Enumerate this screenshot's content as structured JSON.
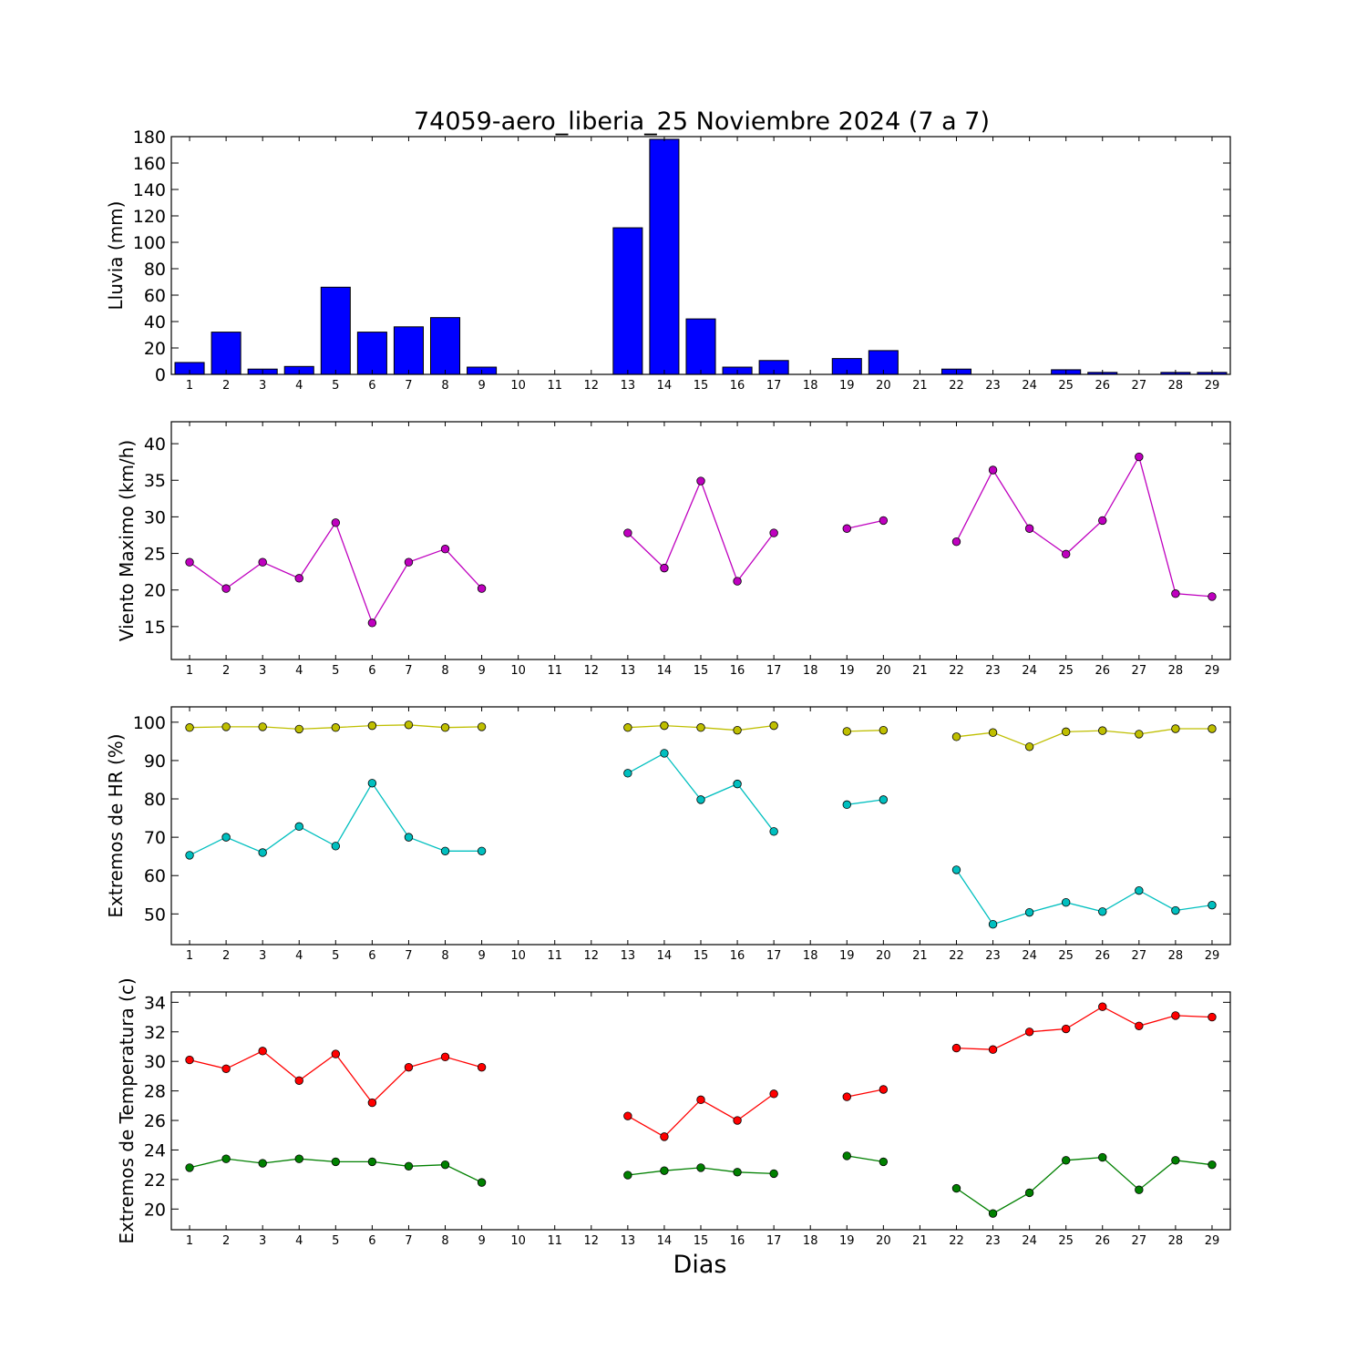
{
  "figure": {
    "title": "74059-aero_liberia_25 Noviembre 2024  (7 a 7)",
    "xlabel": "Dias"
  },
  "chart_data": [
    {
      "type": "bar",
      "ylabel": "Lluvia (mm)",
      "ylim": [
        0,
        180
      ],
      "yticks": [
        0,
        20,
        40,
        60,
        80,
        100,
        120,
        140,
        160,
        180
      ],
      "xlim": [
        0.5,
        29.5
      ],
      "categories": [
        "1",
        "2",
        "3",
        "4",
        "5",
        "6",
        "7",
        "8",
        "9",
        "10",
        "11",
        "12",
        "13",
        "14",
        "15",
        "16",
        "17",
        "18",
        "19",
        "20",
        "21",
        "22",
        "23",
        "24",
        "25",
        "26",
        "27",
        "28",
        "29"
      ],
      "color": "#0000ff",
      "values": [
        9,
        32,
        4,
        6,
        66,
        32,
        36,
        43,
        5.5,
        0,
        0,
        0,
        111,
        178,
        42,
        5.5,
        10.5,
        0,
        12,
        18,
        0,
        4,
        0,
        0,
        3.5,
        1.5,
        0,
        1.5,
        1.5
      ]
    },
    {
      "type": "line",
      "ylabel": "Viento Maximo (km/h)",
      "ylim": [
        10.5,
        43
      ],
      "yticks": [
        15,
        20,
        25,
        30,
        35,
        40
      ],
      "xlim": [
        0.5,
        29.5
      ],
      "x": [
        1,
        2,
        3,
        4,
        5,
        6,
        7,
        8,
        9,
        10,
        11,
        12,
        13,
        14,
        15,
        16,
        17,
        18,
        19,
        20,
        21,
        22,
        23,
        24,
        25,
        26,
        27,
        28,
        29
      ],
      "series": [
        {
          "color": "#bf00bf",
          "values": [
            23.8,
            20.2,
            23.8,
            21.6,
            29.2,
            15.5,
            23.8,
            25.6,
            20.2,
            null,
            null,
            null,
            27.8,
            23.0,
            34.9,
            21.2,
            27.8,
            null,
            28.4,
            29.5,
            null,
            26.6,
            36.4,
            28.4,
            24.9,
            29.5,
            38.2,
            19.5,
            19.1
          ]
        }
      ]
    },
    {
      "type": "line",
      "ylabel": "Extremos de HR (%)",
      "ylim": [
        42,
        104
      ],
      "yticks": [
        50,
        60,
        70,
        80,
        90,
        100
      ],
      "xlim": [
        0.5,
        29.5
      ],
      "x": [
        1,
        2,
        3,
        4,
        5,
        6,
        7,
        8,
        9,
        10,
        11,
        12,
        13,
        14,
        15,
        16,
        17,
        18,
        19,
        20,
        21,
        22,
        23,
        24,
        25,
        26,
        27,
        28,
        29
      ],
      "series": [
        {
          "color": "#bfbf00",
          "values": [
            98.6,
            98.8,
            98.8,
            98.2,
            98.6,
            99.1,
            99.3,
            98.6,
            98.8,
            null,
            null,
            null,
            98.6,
            99.1,
            98.6,
            97.9,
            99.1,
            null,
            97.6,
            97.9,
            null,
            96.2,
            97.3,
            93.6,
            97.5,
            97.8,
            96.9,
            98.3,
            98.3
          ]
        },
        {
          "color": "#00bfbf",
          "values": [
            65.3,
            70.0,
            66.0,
            72.8,
            67.7,
            84.1,
            70.0,
            66.4,
            66.4,
            null,
            null,
            null,
            86.7,
            91.9,
            79.8,
            83.9,
            71.5,
            null,
            78.5,
            79.8,
            null,
            61.5,
            47.3,
            50.4,
            53.0,
            50.6,
            56.1,
            50.9,
            52.3
          ]
        }
      ]
    },
    {
      "type": "line",
      "ylabel": "Extremos de Temperatura (c)",
      "ylim": [
        18.6,
        34.7
      ],
      "yticks": [
        20,
        22,
        24,
        26,
        28,
        30,
        32,
        34
      ],
      "xlim": [
        0.5,
        29.5
      ],
      "x": [
        1,
        2,
        3,
        4,
        5,
        6,
        7,
        8,
        9,
        10,
        11,
        12,
        13,
        14,
        15,
        16,
        17,
        18,
        19,
        20,
        21,
        22,
        23,
        24,
        25,
        26,
        27,
        28,
        29
      ],
      "series": [
        {
          "color": "#ff0000",
          "values": [
            30.1,
            29.5,
            30.7,
            28.7,
            30.5,
            27.2,
            29.6,
            30.3,
            29.6,
            null,
            null,
            null,
            26.3,
            24.9,
            27.4,
            26.0,
            27.8,
            null,
            27.6,
            28.1,
            null,
            30.9,
            30.8,
            32.0,
            32.2,
            33.7,
            32.4,
            33.1,
            33.0
          ]
        },
        {
          "color": "#008000",
          "values": [
            22.8,
            23.4,
            23.1,
            23.4,
            23.2,
            23.2,
            22.9,
            23.0,
            21.8,
            null,
            null,
            null,
            22.3,
            22.6,
            22.8,
            22.5,
            22.4,
            null,
            23.6,
            23.2,
            null,
            21.4,
            19.7,
            21.1,
            23.3,
            23.5,
            21.3,
            23.3,
            23.0
          ]
        }
      ]
    }
  ]
}
